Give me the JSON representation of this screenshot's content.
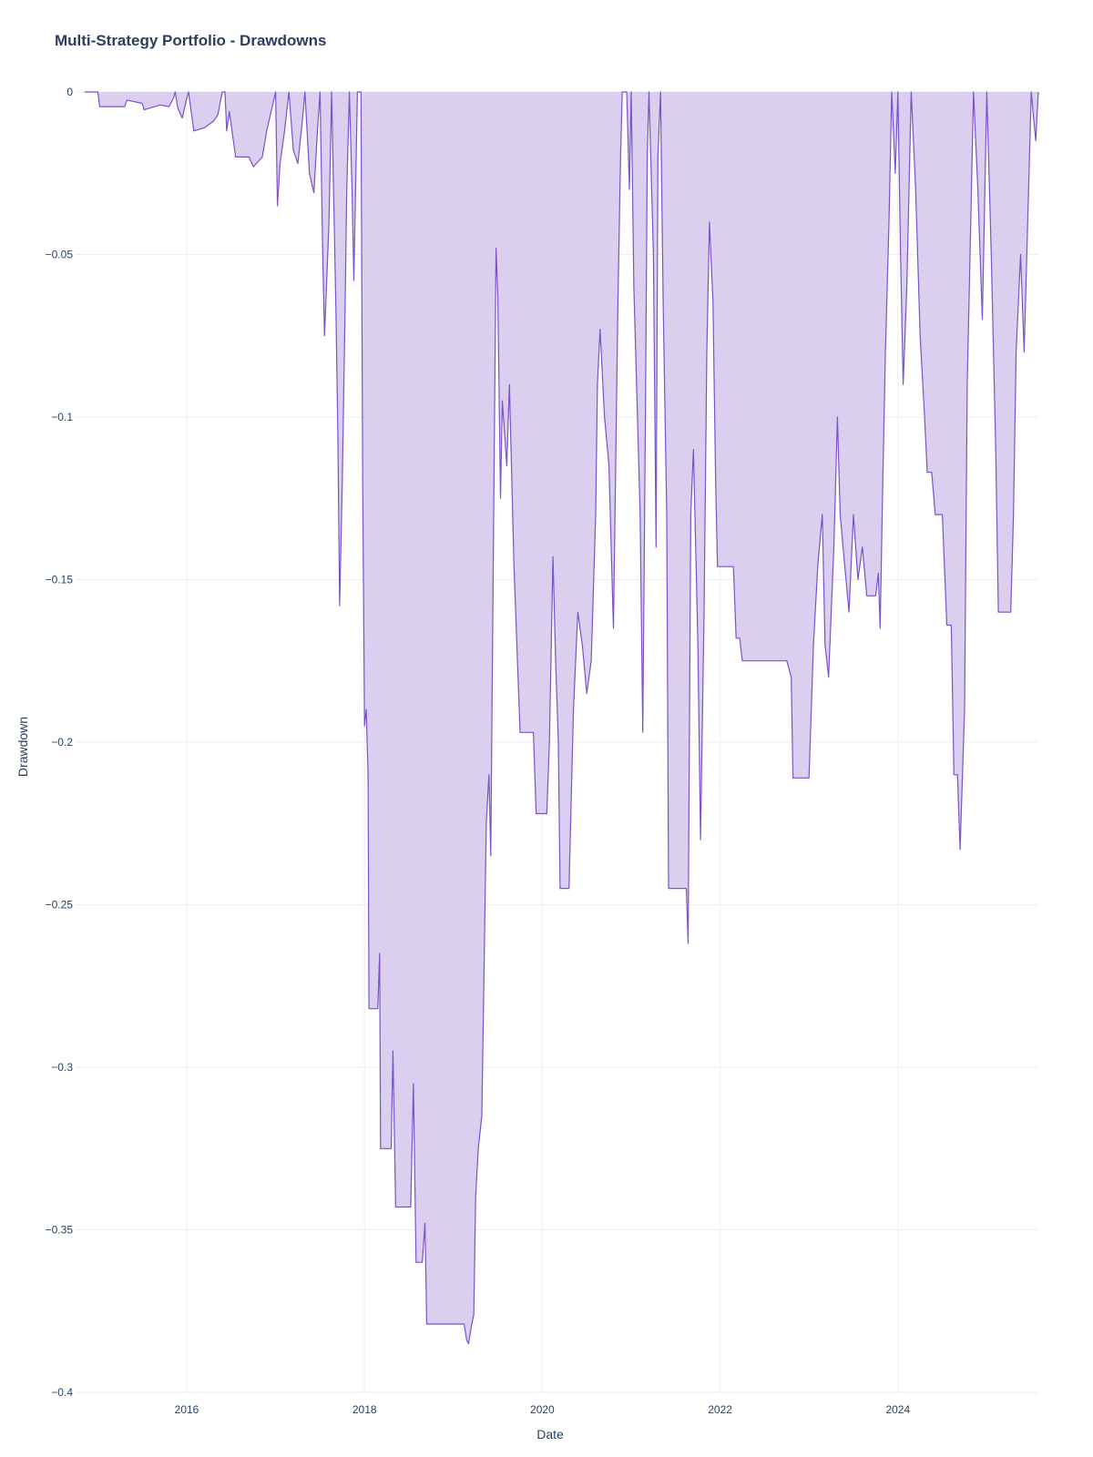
{
  "chart_data": {
    "type": "area",
    "title": "Multi-Strategy Portfolio - Drawdowns",
    "xlabel": "Date",
    "ylabel": "Drawdown",
    "xlim": [
      2014.75,
      2025.58
    ],
    "ylim": [
      -0.4,
      0
    ],
    "x_ticks": [
      {
        "value": 2016,
        "label": "2016"
      },
      {
        "value": 2018,
        "label": "2018"
      },
      {
        "value": 2020,
        "label": "2020"
      },
      {
        "value": 2022,
        "label": "2022"
      },
      {
        "value": 2024,
        "label": "2024"
      }
    ],
    "y_ticks": [
      {
        "value": 0,
        "label": "0"
      },
      {
        "value": -0.05,
        "label": "−0.05"
      },
      {
        "value": -0.1,
        "label": "−0.1"
      },
      {
        "value": -0.15,
        "label": "−0.15"
      },
      {
        "value": -0.2,
        "label": "−0.2"
      },
      {
        "value": -0.25,
        "label": "−0.25"
      },
      {
        "value": -0.3,
        "label": "−0.3"
      },
      {
        "value": -0.35,
        "label": "−0.35"
      },
      {
        "value": -0.4,
        "label": "−0.4"
      }
    ],
    "grid": true,
    "legend": "none",
    "colors": {
      "line": "#7b52c9",
      "fill": "#d8ccee"
    },
    "series": [
      {
        "points": [
          [
            2014.85,
            0
          ],
          [
            2015.0,
            0
          ],
          [
            2015.02,
            -0.0045
          ],
          [
            2015.3,
            -0.0045
          ],
          [
            2015.33,
            -0.0025
          ],
          [
            2015.5,
            -0.0035
          ],
          [
            2015.52,
            -0.0055
          ],
          [
            2015.7,
            -0.004
          ],
          [
            2015.8,
            -0.0045
          ],
          [
            2015.85,
            -0.002
          ],
          [
            2015.87,
            0
          ],
          [
            2015.9,
            -0.005
          ],
          [
            2015.95,
            -0.008
          ],
          [
            2016.0,
            -0.002
          ],
          [
            2016.02,
            0
          ],
          [
            2016.05,
            -0.006
          ],
          [
            2016.08,
            -0.012
          ],
          [
            2016.2,
            -0.011
          ],
          [
            2016.3,
            -0.009
          ],
          [
            2016.35,
            -0.007
          ],
          [
            2016.4,
            0
          ],
          [
            2016.43,
            0
          ],
          [
            2016.45,
            -0.012
          ],
          [
            2016.48,
            -0.006
          ],
          [
            2016.55,
            -0.02
          ],
          [
            2016.7,
            -0.02
          ],
          [
            2016.75,
            -0.023
          ],
          [
            2016.85,
            -0.02
          ],
          [
            2016.9,
            -0.012
          ],
          [
            2016.95,
            -0.006
          ],
          [
            2017.0,
            0
          ],
          [
            2017.02,
            -0.035
          ],
          [
            2017.05,
            -0.022
          ],
          [
            2017.1,
            -0.012
          ],
          [
            2017.15,
            0
          ],
          [
            2017.2,
            -0.018
          ],
          [
            2017.25,
            -0.022
          ],
          [
            2017.3,
            -0.009
          ],
          [
            2017.33,
            0
          ],
          [
            2017.38,
            -0.025
          ],
          [
            2017.43,
            -0.031
          ],
          [
            2017.47,
            -0.012
          ],
          [
            2017.5,
            0
          ],
          [
            2017.53,
            -0.05
          ],
          [
            2017.55,
            -0.075
          ],
          [
            2017.6,
            -0.04
          ],
          [
            2017.63,
            0
          ],
          [
            2017.68,
            -0.07
          ],
          [
            2017.7,
            -0.105
          ],
          [
            2017.72,
            -0.158
          ],
          [
            2017.75,
            -0.12
          ],
          [
            2017.78,
            -0.07
          ],
          [
            2017.8,
            -0.03
          ],
          [
            2017.83,
            0
          ],
          [
            2017.86,
            -0.03
          ],
          [
            2017.88,
            -0.058
          ],
          [
            2017.92,
            0
          ],
          [
            2017.96,
            0
          ],
          [
            2017.98,
            -0.12
          ],
          [
            2018.0,
            -0.195
          ],
          [
            2018.02,
            -0.19
          ],
          [
            2018.04,
            -0.21
          ],
          [
            2018.05,
            -0.282
          ],
          [
            2018.15,
            -0.282
          ],
          [
            2018.17,
            -0.265
          ],
          [
            2018.18,
            -0.325
          ],
          [
            2018.3,
            -0.325
          ],
          [
            2018.32,
            -0.295
          ],
          [
            2018.35,
            -0.343
          ],
          [
            2018.52,
            -0.343
          ],
          [
            2018.55,
            -0.305
          ],
          [
            2018.58,
            -0.36
          ],
          [
            2018.65,
            -0.36
          ],
          [
            2018.68,
            -0.348
          ],
          [
            2018.7,
            -0.379
          ],
          [
            2019.12,
            -0.379
          ],
          [
            2019.15,
            -0.384
          ],
          [
            2019.17,
            -0.385
          ],
          [
            2019.2,
            -0.38
          ],
          [
            2019.23,
            -0.376
          ],
          [
            2019.25,
            -0.34
          ],
          [
            2019.28,
            -0.325
          ],
          [
            2019.32,
            -0.315
          ],
          [
            2019.35,
            -0.26
          ],
          [
            2019.37,
            -0.225
          ],
          [
            2019.4,
            -0.21
          ],
          [
            2019.42,
            -0.235
          ],
          [
            2019.45,
            -0.14
          ],
          [
            2019.48,
            -0.048
          ],
          [
            2019.5,
            -0.063
          ],
          [
            2019.53,
            -0.125
          ],
          [
            2019.55,
            -0.095
          ],
          [
            2019.6,
            -0.115
          ],
          [
            2019.63,
            -0.09
          ],
          [
            2019.68,
            -0.145
          ],
          [
            2019.72,
            -0.175
          ],
          [
            2019.75,
            -0.197
          ],
          [
            2019.9,
            -0.197
          ],
          [
            2019.93,
            -0.222
          ],
          [
            2020.05,
            -0.222
          ],
          [
            2020.08,
            -0.2
          ],
          [
            2020.12,
            -0.143
          ],
          [
            2020.15,
            -0.175
          ],
          [
            2020.18,
            -0.2
          ],
          [
            2020.2,
            -0.245
          ],
          [
            2020.3,
            -0.245
          ],
          [
            2020.35,
            -0.19
          ],
          [
            2020.4,
            -0.16
          ],
          [
            2020.45,
            -0.17
          ],
          [
            2020.5,
            -0.185
          ],
          [
            2020.55,
            -0.175
          ],
          [
            2020.6,
            -0.13
          ],
          [
            2020.62,
            -0.09
          ],
          [
            2020.65,
            -0.073
          ],
          [
            2020.7,
            -0.1
          ],
          [
            2020.75,
            -0.115
          ],
          [
            2020.78,
            -0.145
          ],
          [
            2020.8,
            -0.165
          ],
          [
            2020.85,
            -0.065
          ],
          [
            2020.88,
            -0.02
          ],
          [
            2020.9,
            0
          ],
          [
            2020.95,
            0
          ],
          [
            2020.98,
            -0.03
          ],
          [
            2021.0,
            0
          ],
          [
            2021.03,
            -0.06
          ],
          [
            2021.06,
            -0.09
          ],
          [
            2021.1,
            -0.13
          ],
          [
            2021.13,
            -0.197
          ],
          [
            2021.16,
            -0.1
          ],
          [
            2021.18,
            -0.02
          ],
          [
            2021.2,
            0
          ],
          [
            2021.25,
            -0.05
          ],
          [
            2021.28,
            -0.14
          ],
          [
            2021.3,
            -0.02
          ],
          [
            2021.33,
            0
          ],
          [
            2021.36,
            -0.065
          ],
          [
            2021.4,
            -0.13
          ],
          [
            2021.42,
            -0.245
          ],
          [
            2021.62,
            -0.245
          ],
          [
            2021.64,
            -0.262
          ],
          [
            2021.67,
            -0.13
          ],
          [
            2021.7,
            -0.11
          ],
          [
            2021.73,
            -0.145
          ],
          [
            2021.75,
            -0.17
          ],
          [
            2021.78,
            -0.23
          ],
          [
            2021.82,
            -0.16
          ],
          [
            2021.85,
            -0.08
          ],
          [
            2021.88,
            -0.04
          ],
          [
            2021.92,
            -0.065
          ],
          [
            2021.95,
            -0.12
          ],
          [
            2021.97,
            -0.146
          ],
          [
            2022.15,
            -0.146
          ],
          [
            2022.18,
            -0.168
          ],
          [
            2022.22,
            -0.168
          ],
          [
            2022.25,
            -0.175
          ],
          [
            2022.5,
            -0.175
          ],
          [
            2022.55,
            -0.175
          ],
          [
            2022.75,
            -0.175
          ],
          [
            2022.8,
            -0.18
          ],
          [
            2022.82,
            -0.211
          ],
          [
            2023.0,
            -0.211
          ],
          [
            2023.05,
            -0.17
          ],
          [
            2023.1,
            -0.145
          ],
          [
            2023.15,
            -0.13
          ],
          [
            2023.18,
            -0.17
          ],
          [
            2023.22,
            -0.18
          ],
          [
            2023.28,
            -0.14
          ],
          [
            2023.32,
            -0.1
          ],
          [
            2023.35,
            -0.13
          ],
          [
            2023.4,
            -0.145
          ],
          [
            2023.45,
            -0.16
          ],
          [
            2023.5,
            -0.13
          ],
          [
            2023.55,
            -0.15
          ],
          [
            2023.6,
            -0.14
          ],
          [
            2023.65,
            -0.155
          ],
          [
            2023.75,
            -0.155
          ],
          [
            2023.78,
            -0.148
          ],
          [
            2023.8,
            -0.165
          ],
          [
            2023.83,
            -0.12
          ],
          [
            2023.86,
            -0.08
          ],
          [
            2023.9,
            -0.04
          ],
          [
            2023.93,
            0
          ],
          [
            2023.97,
            -0.025
          ],
          [
            2024.0,
            0
          ],
          [
            2024.03,
            -0.05
          ],
          [
            2024.06,
            -0.09
          ],
          [
            2024.1,
            -0.06
          ],
          [
            2024.15,
            0
          ],
          [
            2024.2,
            -0.03
          ],
          [
            2024.25,
            -0.075
          ],
          [
            2024.3,
            -0.1
          ],
          [
            2024.33,
            -0.117
          ],
          [
            2024.38,
            -0.117
          ],
          [
            2024.42,
            -0.13
          ],
          [
            2024.5,
            -0.13
          ],
          [
            2024.55,
            -0.164
          ],
          [
            2024.6,
            -0.164
          ],
          [
            2024.63,
            -0.21
          ],
          [
            2024.67,
            -0.21
          ],
          [
            2024.7,
            -0.233
          ],
          [
            2024.75,
            -0.19
          ],
          [
            2024.78,
            -0.09
          ],
          [
            2024.82,
            -0.04
          ],
          [
            2024.85,
            0
          ],
          [
            2024.9,
            -0.03
          ],
          [
            2024.95,
            -0.07
          ],
          [
            2025.0,
            0
          ],
          [
            2025.05,
            -0.05
          ],
          [
            2025.1,
            -0.11
          ],
          [
            2025.13,
            -0.16
          ],
          [
            2025.27,
            -0.16
          ],
          [
            2025.3,
            -0.13
          ],
          [
            2025.33,
            -0.08
          ],
          [
            2025.38,
            -0.05
          ],
          [
            2025.42,
            -0.08
          ],
          [
            2025.47,
            -0.03
          ],
          [
            2025.5,
            0
          ],
          [
            2025.55,
            -0.015
          ],
          [
            2025.58,
            0
          ]
        ]
      }
    ]
  }
}
